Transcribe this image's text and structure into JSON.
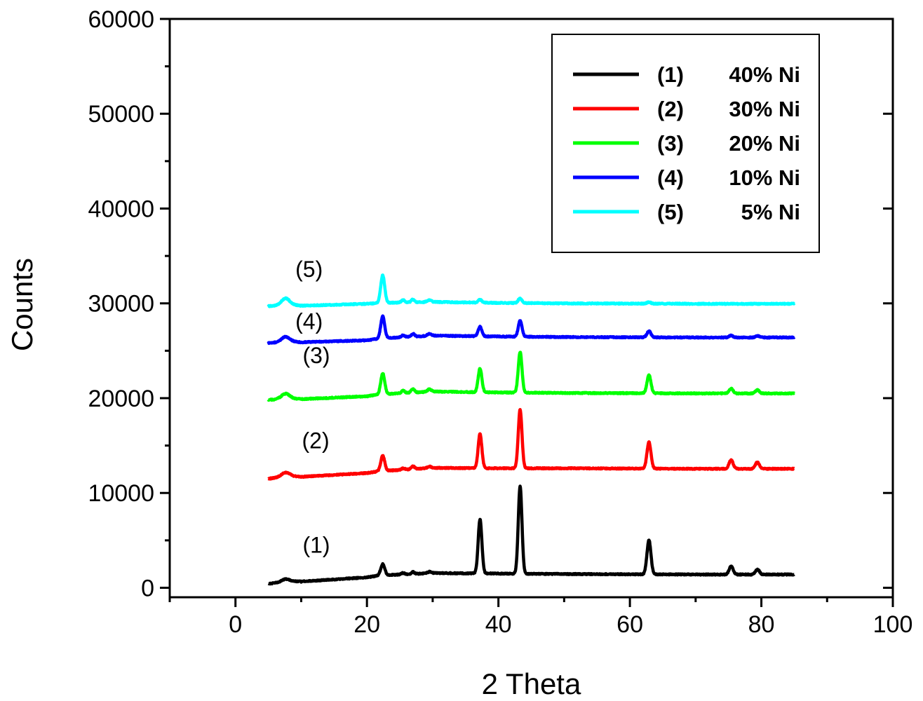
{
  "chart_data": {
    "type": "line",
    "title": "",
    "xlabel": "2 Theta",
    "ylabel": "Counts",
    "xlim": [
      -10,
      100
    ],
    "ylim": [
      -1000,
      60000
    ],
    "x_ticks": [
      0,
      20,
      40,
      60,
      80,
      100
    ],
    "y_ticks": [
      0,
      10000,
      20000,
      30000,
      40000,
      50000,
      60000
    ],
    "x_tick_labels": [
      "0",
      "20",
      "40",
      "60",
      "80",
      "100"
    ],
    "y_tick_labels": [
      "0",
      "10000",
      "20000",
      "30000",
      "40000",
      "50000",
      "60000"
    ],
    "grid": false,
    "legend_position": "top-right",
    "series": [
      {
        "id": "1",
        "label": "(1)",
        "name": "40% Ni",
        "color": "#000000",
        "baseline": [
          [
            5,
            400
          ],
          [
            8,
            700
          ],
          [
            10,
            650
          ],
          [
            20,
            1100
          ],
          [
            22,
            1300
          ],
          [
            30,
            1550
          ],
          [
            40,
            1500
          ],
          [
            50,
            1450
          ],
          [
            70,
            1400
          ],
          [
            85,
            1400
          ]
        ],
        "peaks": [
          [
            7.6,
            250,
            0.6
          ],
          [
            22.4,
            1200,
            0.3
          ],
          [
            25.5,
            150,
            0.25
          ],
          [
            27.0,
            200,
            0.25
          ],
          [
            29.5,
            150,
            0.3
          ],
          [
            37.2,
            5700,
            0.28
          ],
          [
            43.3,
            9200,
            0.28
          ],
          [
            62.9,
            3600,
            0.3
          ],
          [
            75.4,
            850,
            0.3
          ],
          [
            79.4,
            550,
            0.3
          ]
        ]
      },
      {
        "id": "2",
        "label": "(2)",
        "name": "30% Ni",
        "color": "#ff0000",
        "baseline": [
          [
            5,
            11500
          ],
          [
            8,
            11800
          ],
          [
            10,
            11700
          ],
          [
            20,
            12100
          ],
          [
            22,
            12300
          ],
          [
            30,
            12650
          ],
          [
            40,
            12600
          ],
          [
            50,
            12600
          ],
          [
            70,
            12550
          ],
          [
            85,
            12550
          ]
        ],
        "peaks": [
          [
            7.6,
            400,
            0.6
          ],
          [
            22.4,
            1600,
            0.3
          ],
          [
            25.5,
            150,
            0.25
          ],
          [
            27.0,
            300,
            0.25
          ],
          [
            29.5,
            150,
            0.3
          ],
          [
            37.2,
            3600,
            0.28
          ],
          [
            43.3,
            6200,
            0.28
          ],
          [
            62.9,
            2800,
            0.3
          ],
          [
            75.4,
            950,
            0.3
          ],
          [
            79.4,
            700,
            0.3
          ]
        ]
      },
      {
        "id": "3",
        "label": "(3)",
        "name": "20% Ni",
        "color": "#00ff00",
        "baseline": [
          [
            5,
            19800
          ],
          [
            8,
            20000
          ],
          [
            10,
            19900
          ],
          [
            20,
            20200
          ],
          [
            22,
            20400
          ],
          [
            30,
            20700
          ],
          [
            40,
            20600
          ],
          [
            50,
            20550
          ],
          [
            70,
            20500
          ],
          [
            85,
            20500
          ]
        ],
        "peaks": [
          [
            7.6,
            500,
            0.6
          ],
          [
            22.4,
            2200,
            0.3
          ],
          [
            25.5,
            250,
            0.25
          ],
          [
            27.0,
            400,
            0.25
          ],
          [
            29.5,
            250,
            0.3
          ],
          [
            37.2,
            2500,
            0.28
          ],
          [
            43.3,
            4300,
            0.28
          ],
          [
            62.9,
            1900,
            0.3
          ],
          [
            75.4,
            500,
            0.3
          ],
          [
            79.4,
            350,
            0.3
          ]
        ]
      },
      {
        "id": "4",
        "label": "(4)",
        "name": "10% Ni",
        "color": "#0000ff",
        "baseline": [
          [
            5,
            25800
          ],
          [
            8,
            26000
          ],
          [
            10,
            25900
          ],
          [
            20,
            26100
          ],
          [
            22,
            26300
          ],
          [
            30,
            26600
          ],
          [
            40,
            26500
          ],
          [
            50,
            26450
          ],
          [
            70,
            26400
          ],
          [
            85,
            26400
          ]
        ],
        "peaks": [
          [
            7.6,
            500,
            0.6
          ],
          [
            22.4,
            2300,
            0.3
          ],
          [
            25.5,
            200,
            0.25
          ],
          [
            27.0,
            300,
            0.25
          ],
          [
            29.5,
            200,
            0.3
          ],
          [
            37.2,
            1000,
            0.28
          ],
          [
            43.3,
            1700,
            0.28
          ],
          [
            62.9,
            650,
            0.3
          ],
          [
            75.4,
            200,
            0.3
          ],
          [
            79.4,
            150,
            0.3
          ]
        ]
      },
      {
        "id": "5",
        "label": "(5)",
        "name": "5% Ni",
        "color": "#00ffff",
        "baseline": [
          [
            5,
            29700
          ],
          [
            8,
            29900
          ],
          [
            10,
            29750
          ],
          [
            20,
            29950
          ],
          [
            22,
            30050
          ],
          [
            30,
            30150
          ],
          [
            40,
            30050
          ],
          [
            50,
            30000
          ],
          [
            70,
            29950
          ],
          [
            85,
            29950
          ]
        ],
        "peaks": [
          [
            7.6,
            650,
            0.6
          ],
          [
            22.4,
            2900,
            0.3
          ],
          [
            25.5,
            250,
            0.25
          ],
          [
            27.0,
            300,
            0.25
          ],
          [
            29.5,
            200,
            0.3
          ],
          [
            37.2,
            300,
            0.28
          ],
          [
            43.3,
            500,
            0.28
          ],
          [
            62.9,
            150,
            0.3
          ]
        ]
      }
    ],
    "annotations": [
      {
        "text": "(1)",
        "x": 12.3,
        "y": 3700
      },
      {
        "text": "(2)",
        "x": 12.2,
        "y": 14700
      },
      {
        "text": "(3)",
        "x": 12.3,
        "y": 23700
      },
      {
        "text": "(4)",
        "x": 11.2,
        "y": 27300
      },
      {
        "text": "(5)",
        "x": 11.2,
        "y": 32800
      }
    ],
    "legend": {
      "entries": [
        {
          "label": "(1)",
          "text": "40% Ni",
          "color": "#000000"
        },
        {
          "label": "(2)",
          "text": "30% Ni",
          "color": "#ff0000"
        },
        {
          "label": "(3)",
          "text": "20% Ni",
          "color": "#00ff00"
        },
        {
          "label": "(4)",
          "text": "10% Ni",
          "color": "#0000ff"
        },
        {
          "label": "(5)",
          "text": "5% Ni",
          "color": "#00ffff"
        }
      ]
    }
  }
}
